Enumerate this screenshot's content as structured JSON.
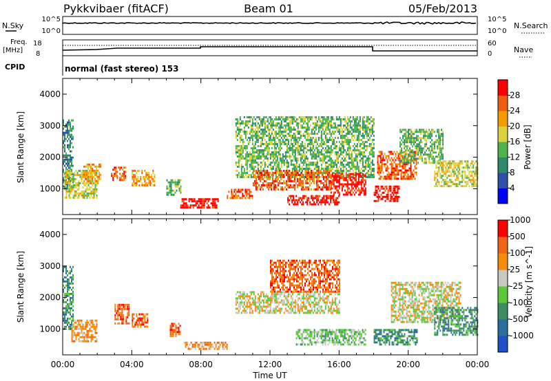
{
  "header": {
    "radar": "Pykkvibaer (fitACF)",
    "beam": "Beam 01",
    "date": "05/Feb/2013"
  },
  "status_panels": {
    "nsky_label": "N.Sky",
    "nsky_ticks": [
      "10^5",
      "10^0"
    ],
    "nsearch_label": "N.Search",
    "nsearch_ticks": [
      "10^5",
      "10^0"
    ],
    "freq_label_1": "Freq.",
    "freq_label_2": "[MHz]",
    "freq_ticks": [
      "18",
      "8"
    ],
    "nave_label": "Nave",
    "nave_ticks": [
      "60",
      "0"
    ],
    "cpid_label": "CPID",
    "cpid_text": "normal (fast stereo) 153"
  },
  "chart_data": [
    {
      "type": "heatmap",
      "title": "",
      "ylabel": "Slant Range [km]",
      "ylim": [
        180,
        4500
      ],
      "yticks": [
        "1000",
        "2000",
        "3000",
        "4000"
      ],
      "xlim": [
        0,
        24
      ],
      "colorbar": {
        "label": "Power [dB]",
        "ticks": [
          "4",
          "8",
          "12",
          "16",
          "20",
          "24",
          "28"
        ],
        "colors": [
          "#0000ff",
          "#2d50a8",
          "#2e8a6a",
          "#4fb24f",
          "#dcd23c",
          "#f59b00",
          "#ee6010",
          "#ff0000"
        ]
      },
      "echo_regions": [
        {
          "t": [
            0.0,
            0.6
          ],
          "r": [
            1000,
            3200
          ],
          "level": 2
        },
        {
          "t": [
            0.1,
            2.0
          ],
          "r": [
            700,
            1600
          ],
          "level": 4
        },
        {
          "t": [
            1.2,
            2.2
          ],
          "r": [
            1200,
            1800
          ],
          "level": 5
        },
        {
          "t": [
            2.8,
            3.6
          ],
          "r": [
            1300,
            1700
          ],
          "level": 6
        },
        {
          "t": [
            4.0,
            5.3
          ],
          "r": [
            1100,
            1600
          ],
          "level": 5
        },
        {
          "t": [
            6.0,
            6.8
          ],
          "r": [
            800,
            1300
          ],
          "level": 3
        },
        {
          "t": [
            6.8,
            9.0
          ],
          "r": [
            400,
            700
          ],
          "level": 7
        },
        {
          "t": [
            9.5,
            11.0
          ],
          "r": [
            700,
            1000
          ],
          "level": 6
        },
        {
          "t": [
            10.0,
            18.0
          ],
          "r": [
            1400,
            3300
          ],
          "level": 3
        },
        {
          "t": [
            11.0,
            15.5
          ],
          "r": [
            1000,
            1600
          ],
          "level": 6
        },
        {
          "t": [
            13.0,
            16.0
          ],
          "r": [
            500,
            800
          ],
          "level": 7
        },
        {
          "t": [
            15.5,
            17.5
          ],
          "r": [
            800,
            1500
          ],
          "level": 7
        },
        {
          "t": [
            18.0,
            19.5
          ],
          "r": [
            600,
            1100
          ],
          "level": 7
        },
        {
          "t": [
            18.2,
            20.5
          ],
          "r": [
            1300,
            2200
          ],
          "level": 6
        },
        {
          "t": [
            19.5,
            22.0
          ],
          "r": [
            1800,
            2900
          ],
          "level": 3
        },
        {
          "t": [
            21.5,
            24.0
          ],
          "r": [
            1100,
            1900
          ],
          "level": 4
        }
      ]
    },
    {
      "type": "heatmap",
      "title": "",
      "ylabel": "Slant Range [km]",
      "ylim": [
        180,
        4500
      ],
      "yticks": [
        "1000",
        "2000",
        "3000",
        "4000"
      ],
      "xlim": [
        0,
        24
      ],
      "xticks": [
        "00:00",
        "04:00",
        "08:00",
        "12:00",
        "16:00",
        "20:00",
        "00:00"
      ],
      "xlabel": "Time UT",
      "colorbar": {
        "label": "Velocity [m s^-1]",
        "ticks": [
          "1000",
          "500",
          "100",
          "25",
          "-25",
          "-100",
          "-500",
          "-1000"
        ],
        "colors": [
          "#1e50c8",
          "#2a6e9e",
          "#3c8c64",
          "#5cc83c",
          "#c8c8c0",
          "#f58c0a",
          "#f06414",
          "#ff0000"
        ]
      },
      "echo_regions": [
        {
          "t": [
            0.0,
            0.6
          ],
          "r": [
            1000,
            3000
          ],
          "level": 2
        },
        {
          "t": [
            0.5,
            2.0
          ],
          "r": [
            600,
            1300
          ],
          "level": 5
        },
        {
          "t": [
            3.0,
            3.8
          ],
          "r": [
            1200,
            1800
          ],
          "level": 6
        },
        {
          "t": [
            4.0,
            5.0
          ],
          "r": [
            1100,
            1500
          ],
          "level": 6
        },
        {
          "t": [
            6.2,
            6.8
          ],
          "r": [
            800,
            1200
          ],
          "level": 6
        },
        {
          "t": [
            7.0,
            9.5
          ],
          "r": [
            400,
            600
          ],
          "level": 5
        },
        {
          "t": [
            10.0,
            16.0
          ],
          "r": [
            1500,
            2200
          ],
          "level": 4
        },
        {
          "t": [
            12.0,
            16.0
          ],
          "r": [
            2200,
            3200
          ],
          "level": 6
        },
        {
          "t": [
            13.5,
            17.5
          ],
          "r": [
            500,
            1000
          ],
          "level": 3
        },
        {
          "t": [
            18.0,
            20.5
          ],
          "r": [
            500,
            1000
          ],
          "level": 2
        },
        {
          "t": [
            19.0,
            23.0
          ],
          "r": [
            1200,
            2500
          ],
          "level": 4
        },
        {
          "t": [
            21.5,
            24.0
          ],
          "r": [
            800,
            1700
          ],
          "level": 2
        }
      ]
    }
  ]
}
